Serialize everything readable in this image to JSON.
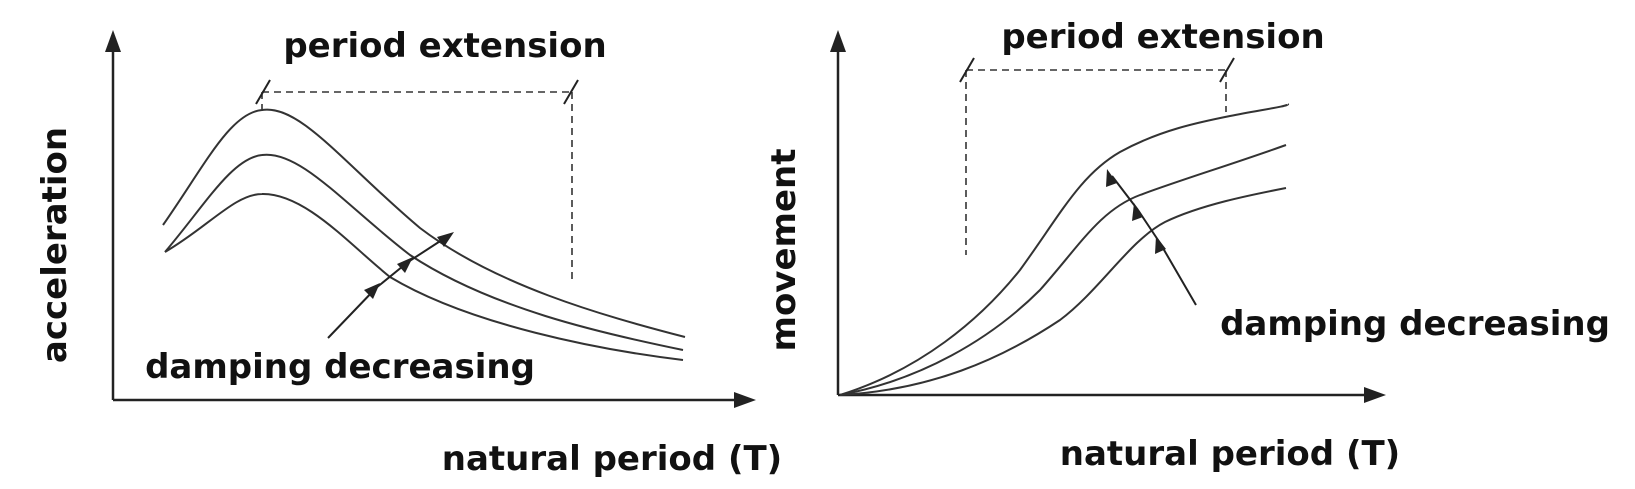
{
  "left_panel": {
    "y_label": "acceleration",
    "x_label": "natural period (T)",
    "bracket_label": "period extension",
    "pointer_label": "damping decreasing"
  },
  "right_panel": {
    "y_label": "movement",
    "x_label": "natural period (T)",
    "bracket_label": "period extension",
    "pointer_label": "damping decreasing"
  },
  "colors": {
    "ink": "#222222",
    "background": "#ffffff"
  }
}
